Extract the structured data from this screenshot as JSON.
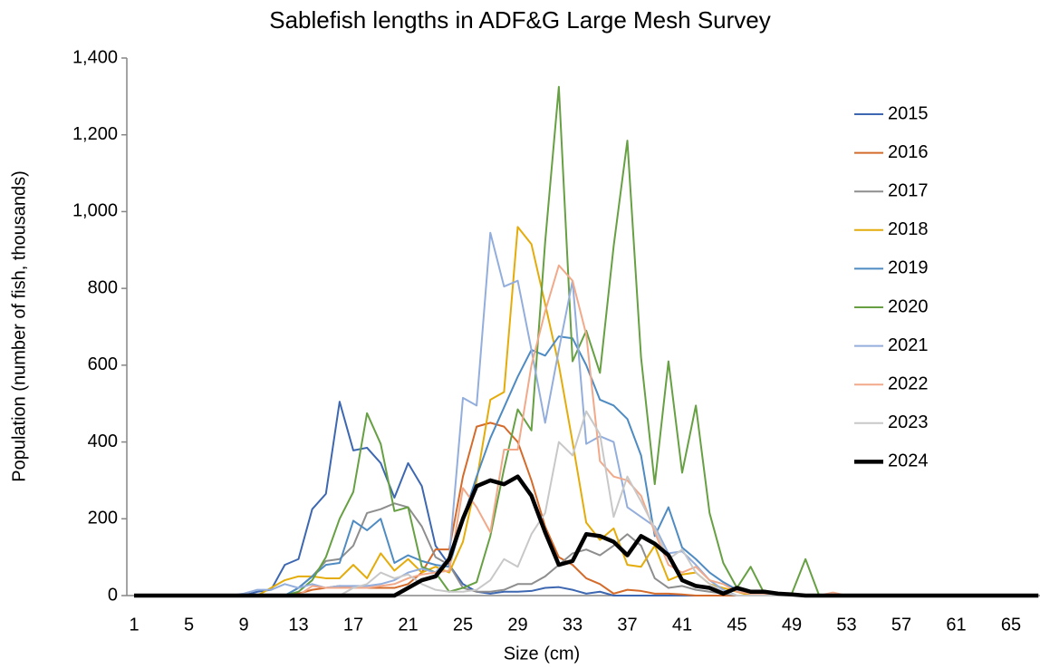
{
  "chart_data": {
    "type": "line",
    "title": "Sablefish lengths in ADF&G Large Mesh Survey",
    "x_label": "Size (cm)",
    "y_label": "Population (number of fish, thousands)",
    "categories": [
      "1",
      null,
      null,
      null,
      "5",
      null,
      null,
      null,
      "9",
      null,
      null,
      null,
      "13",
      null,
      null,
      null,
      "17",
      null,
      null,
      null,
      "21",
      null,
      null,
      null,
      "25",
      null,
      null,
      null,
      "29",
      null,
      null,
      null,
      "33",
      null,
      null,
      null,
      "37",
      null,
      null,
      null,
      "41",
      null,
      null,
      null,
      "45",
      null,
      null,
      null,
      "49",
      null,
      null,
      null,
      "53",
      null,
      null,
      null,
      "57",
      null,
      null,
      null,
      "61",
      null,
      null,
      null,
      "65",
      null,
      null
    ],
    "ylim": [
      0,
      1400
    ],
    "yticks": [
      0,
      200,
      400,
      600,
      800,
      {
        "value": 1000,
        "label": "1,000"
      },
      {
        "value": 1200,
        "label": "1,200"
      },
      {
        "value": 1400,
        "label": "1,400"
      }
    ],
    "grid": false,
    "legend": "right",
    "series": [
      {
        "name": "2015",
        "color": "#3d67b1",
        "width": 2,
        "values": [
          0,
          0,
          0,
          0,
          0,
          0,
          0,
          0,
          0,
          10,
          15,
          80,
          95,
          225,
          265,
          505,
          378,
          385,
          345,
          255,
          345,
          285,
          130,
          80,
          30,
          10,
          5,
          10,
          10,
          12,
          20,
          22,
          15,
          5,
          10,
          0,
          0,
          0,
          0,
          0,
          0,
          0,
          0,
          0,
          0,
          0,
          0,
          0,
          0,
          0,
          0,
          0,
          0,
          0,
          0,
          0,
          0,
          0,
          0,
          0,
          0,
          0,
          0,
          0,
          0,
          0,
          0
        ]
      },
      {
        "name": "2016",
        "color": "#d46b2b",
        "width": 2,
        "values": [
          0,
          0,
          0,
          0,
          0,
          0,
          0,
          0,
          0,
          0,
          0,
          0,
          5,
          15,
          20,
          25,
          20,
          20,
          20,
          20,
          30,
          60,
          120,
          120,
          310,
          440,
          450,
          440,
          400,
          300,
          180,
          100,
          80,
          45,
          30,
          5,
          15,
          12,
          5,
          5,
          3,
          0,
          0,
          0,
          0,
          0,
          0,
          0,
          0,
          0,
          0,
          0,
          0,
          0,
          0,
          0,
          0,
          0,
          0,
          0,
          0,
          0,
          0,
          0,
          0,
          0,
          0
        ]
      },
      {
        "name": "2017",
        "color": "#8e8e8e",
        "width": 2,
        "values": [
          0,
          0,
          0,
          0,
          0,
          0,
          0,
          0,
          0,
          0,
          0,
          0,
          20,
          50,
          90,
          95,
          130,
          215,
          225,
          240,
          230,
          180,
          100,
          80,
          20,
          10,
          10,
          15,
          30,
          30,
          50,
          80,
          110,
          120,
          105,
          130,
          160,
          130,
          45,
          20,
          25,
          15,
          10,
          5,
          0,
          0,
          0,
          0,
          0,
          0,
          0,
          0,
          0,
          0,
          0,
          0,
          0,
          0,
          0,
          0,
          0,
          0,
          0,
          0,
          0,
          0,
          0
        ]
      },
      {
        "name": "2018",
        "color": "#e4ac0b",
        "width": 2,
        "values": [
          0,
          0,
          0,
          0,
          0,
          0,
          0,
          0,
          0,
          0,
          20,
          40,
          50,
          50,
          45,
          45,
          80,
          45,
          110,
          65,
          95,
          60,
          75,
          60,
          140,
          300,
          510,
          530,
          960,
          915,
          760,
          600,
          400,
          190,
          145,
          175,
          80,
          75,
          130,
          40,
          55,
          60,
          30,
          20,
          10,
          0,
          0,
          0,
          0,
          0,
          0,
          0,
          0,
          0,
          0,
          0,
          0,
          0,
          0,
          0,
          0,
          0,
          0,
          0,
          0,
          0,
          0
        ]
      },
      {
        "name": "2019",
        "color": "#4e8bc2",
        "width": 2,
        "values": [
          0,
          0,
          0,
          0,
          0,
          0,
          0,
          0,
          0,
          0,
          0,
          0,
          20,
          50,
          80,
          85,
          195,
          170,
          200,
          85,
          105,
          90,
          80,
          75,
          200,
          310,
          410,
          490,
          570,
          640,
          625,
          675,
          670,
          600,
          510,
          495,
          460,
          365,
          155,
          230,
          125,
          95,
          60,
          35,
          15,
          10,
          5,
          0,
          0,
          0,
          0,
          0,
          0,
          0,
          0,
          0,
          0,
          0,
          0,
          0,
          0,
          0,
          0,
          0,
          0,
          0,
          0
        ]
      },
      {
        "name": "2020",
        "color": "#66a043",
        "width": 2,
        "values": [
          0,
          0,
          0,
          0,
          0,
          0,
          0,
          0,
          0,
          0,
          0,
          0,
          10,
          40,
          100,
          200,
          270,
          475,
          395,
          220,
          230,
          75,
          60,
          10,
          20,
          35,
          155,
          330,
          485,
          430,
          920,
          1325,
          610,
          690,
          580,
          910,
          1185,
          620,
          290,
          610,
          320,
          495,
          215,
          85,
          20,
          75,
          5,
          5,
          5,
          95,
          0,
          0,
          0,
          0,
          0,
          0,
          0,
          0,
          0,
          0,
          0,
          0,
          0,
          0,
          0,
          0,
          0
        ]
      },
      {
        "name": "2021",
        "color": "#93aedc",
        "width": 2,
        "values": [
          0,
          0,
          0,
          0,
          0,
          0,
          0,
          0,
          5,
          15,
          15,
          30,
          20,
          30,
          20,
          25,
          25,
          25,
          30,
          40,
          60,
          70,
          60,
          100,
          515,
          495,
          945,
          805,
          820,
          640,
          450,
          640,
          820,
          395,
          415,
          400,
          230,
          205,
          180,
          110,
          115,
          80,
          40,
          15,
          0,
          0,
          0,
          0,
          0,
          0,
          0,
          0,
          0,
          0,
          0,
          0,
          0,
          0,
          0,
          0,
          0,
          0,
          0,
          0,
          0,
          0,
          0
        ]
      },
      {
        "name": "2022",
        "color": "#f1a98a",
        "width": 2,
        "values": [
          0,
          0,
          0,
          0,
          0,
          0,
          0,
          0,
          0,
          0,
          0,
          0,
          0,
          25,
          20,
          20,
          20,
          20,
          25,
          30,
          45,
          55,
          60,
          65,
          280,
          230,
          165,
          380,
          380,
          600,
          740,
          860,
          820,
          680,
          350,
          310,
          300,
          260,
          165,
          80,
          60,
          75,
          40,
          30,
          10,
          5,
          5,
          0,
          0,
          0,
          0,
          8,
          0,
          0,
          0,
          0,
          0,
          0,
          0,
          0,
          0,
          0,
          0,
          0,
          0,
          0,
          0
        ]
      },
      {
        "name": "2023",
        "color": "#c8c8c8",
        "width": 2,
        "values": [
          0,
          0,
          0,
          0,
          0,
          0,
          0,
          0,
          0,
          0,
          0,
          0,
          0,
          0,
          0,
          0,
          20,
          30,
          60,
          45,
          55,
          30,
          15,
          10,
          10,
          15,
          40,
          95,
          75,
          160,
          215,
          400,
          365,
          480,
          420,
          205,
          310,
          245,
          175,
          95,
          120,
          60,
          30,
          10,
          0,
          0,
          0,
          0,
          0,
          0,
          0,
          0,
          0,
          0,
          0,
          0,
          0,
          0,
          0,
          0,
          0,
          0,
          0,
          0,
          0,
          0,
          0
        ]
      },
      {
        "name": "2024",
        "color": "#000000",
        "width": 4.5,
        "values": [
          0,
          0,
          0,
          0,
          0,
          0,
          0,
          0,
          0,
          0,
          0,
          0,
          0,
          0,
          0,
          0,
          0,
          0,
          0,
          0,
          20,
          40,
          50,
          95,
          200,
          285,
          300,
          290,
          310,
          260,
          165,
          80,
          90,
          160,
          155,
          140,
          105,
          155,
          135,
          105,
          40,
          25,
          20,
          5,
          20,
          10,
          10,
          5,
          3,
          0,
          0,
          0,
          0,
          0,
          0,
          0,
          0,
          0,
          0,
          0,
          0,
          0,
          0,
          0,
          0,
          0,
          0
        ]
      }
    ]
  }
}
